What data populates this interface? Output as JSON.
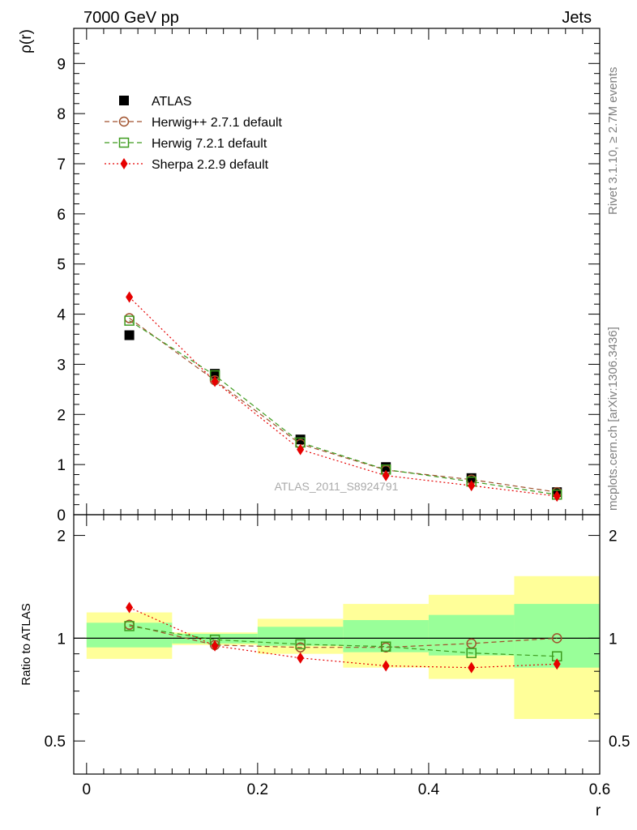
{
  "header": {
    "left_title": "7000 GeV pp",
    "right_title": "Jets"
  },
  "side_labels": {
    "rivet": "Rivet 3.1.10, ≥ 2.7M events",
    "mcplots": "mcplots.cern.ch [arXiv:1306.3436]"
  },
  "watermark": "ATLAS_2011_S8924791",
  "colors": {
    "atlas": "#000000",
    "herwigpp": "#a0522d",
    "herwig7": "#3d9b1e",
    "sherpa": "#e60000",
    "band_yellow": "#ffff99",
    "band_green": "#99ff99"
  },
  "chart_data": [
    {
      "type": "scatter",
      "panel": "main",
      "title": "7000 GeV pp",
      "xlabel": "r",
      "ylabel": "ρ(r)",
      "xlim": [
        -0.015,
        0.6
      ],
      "ylim": [
        0,
        9.7
      ],
      "y_ticks": [
        "0",
        "1",
        "2",
        "3",
        "4",
        "5",
        "6",
        "7",
        "8",
        "9"
      ],
      "x": [
        0.05,
        0.15,
        0.25,
        0.35,
        0.45,
        0.55
      ],
      "legend_position": "top-left",
      "series": [
        {
          "name": "ATLAS",
          "marker": "square",
          "values": [
            3.58,
            2.81,
            1.5,
            0.95,
            0.73,
            0.45
          ]
        },
        {
          "name": "Herwig++ 2.7.1 default",
          "marker": "open-circle",
          "values": [
            3.92,
            2.68,
            1.41,
            0.89,
            0.7,
            0.45
          ]
        },
        {
          "name": "Herwig 7.2.1 default",
          "marker": "open-square",
          "values": [
            3.87,
            2.78,
            1.44,
            0.9,
            0.66,
            0.4
          ]
        },
        {
          "name": "Sherpa 2.2.9 default",
          "marker": "diamond",
          "values": [
            4.34,
            2.66,
            1.3,
            0.78,
            0.58,
            0.37
          ]
        }
      ]
    },
    {
      "type": "line",
      "panel": "ratio",
      "ylabel": "Ratio to ATLAS",
      "xlabel": "r",
      "xlim": [
        -0.015,
        0.6
      ],
      "ylim": [
        0.4,
        2.3
      ],
      "log_y": true,
      "x_ticks": [
        "0",
        "0.2",
        "0.4",
        "0.6"
      ],
      "y_ticks": [
        "0.5",
        "1",
        "2"
      ],
      "bins": [
        [
          0.0,
          0.1
        ],
        [
          0.1,
          0.2
        ],
        [
          0.2,
          0.3
        ],
        [
          0.3,
          0.4
        ],
        [
          0.4,
          0.5
        ],
        [
          0.5,
          0.6
        ]
      ],
      "band_yellow": [
        [
          0.87,
          1.19
        ],
        [
          0.955,
          1.04
        ],
        [
          0.9,
          1.14
        ],
        [
          0.82,
          1.26
        ],
        [
          0.76,
          1.34
        ],
        [
          0.58,
          1.52
        ]
      ],
      "band_green": [
        [
          0.94,
          1.11
        ],
        [
          0.965,
          1.03
        ],
        [
          0.95,
          1.08
        ],
        [
          0.91,
          1.13
        ],
        [
          0.89,
          1.17
        ],
        [
          0.82,
          1.26
        ]
      ],
      "x": [
        0.05,
        0.15,
        0.25,
        0.35,
        0.45,
        0.55
      ],
      "series": [
        {
          "name": "Herwig++ 2.7.1 default",
          "values": [
            1.095,
            0.955,
            0.94,
            0.94,
            0.965,
            1.0
          ]
        },
        {
          "name": "Herwig 7.2.1 default",
          "values": [
            1.085,
            0.99,
            0.96,
            0.945,
            0.905,
            0.885
          ]
        },
        {
          "name": "Sherpa 2.2.9 default",
          "values": [
            1.23,
            0.95,
            0.875,
            0.83,
            0.82,
            0.84
          ]
        }
      ]
    }
  ]
}
